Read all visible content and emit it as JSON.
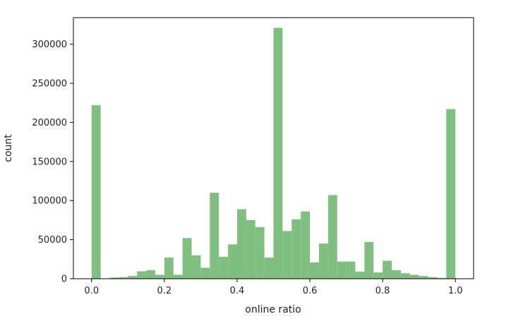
{
  "chart_data": {
    "type": "bar",
    "bin_width": 0.025,
    "x": [
      0.0,
      0.05,
      0.075,
      0.1,
      0.125,
      0.15,
      0.175,
      0.2,
      0.225,
      0.25,
      0.275,
      0.3,
      0.325,
      0.35,
      0.375,
      0.4,
      0.425,
      0.45,
      0.475,
      0.5,
      0.525,
      0.55,
      0.575,
      0.6,
      0.625,
      0.65,
      0.675,
      0.7,
      0.725,
      0.75,
      0.775,
      0.8,
      0.825,
      0.85,
      0.875,
      0.9,
      0.925,
      0.95,
      0.975
    ],
    "values": [
      222000,
      1500,
      2000,
      3500,
      9500,
      11000,
      5000,
      27000,
      5000,
      52000,
      30000,
      14000,
      110000,
      28000,
      44000,
      89000,
      75000,
      66000,
      27000,
      321000,
      61000,
      76000,
      86000,
      21000,
      45000,
      107000,
      22000,
      22000,
      9000,
      47000,
      8000,
      23000,
      11000,
      7000,
      5000,
      3500,
      2000,
      1000,
      217000
    ],
    "color": "#80bf80",
    "xlabel": "online ratio",
    "ylabel": "count",
    "xlim": [
      -0.05,
      1.05
    ],
    "ylim": [
      0,
      334000
    ],
    "x_ticks": [
      0.0,
      0.2,
      0.4,
      0.6,
      0.8,
      1.0
    ],
    "x_tick_labels": [
      "0.0",
      "0.2",
      "0.4",
      "0.6",
      "0.8",
      "1.0"
    ],
    "y_ticks": [
      0,
      50000,
      100000,
      150000,
      200000,
      250000,
      300000
    ],
    "y_tick_labels": [
      "0",
      "50000",
      "100000",
      "150000",
      "200000",
      "250000",
      "300000"
    ],
    "grid": false,
    "legend": "none"
  }
}
